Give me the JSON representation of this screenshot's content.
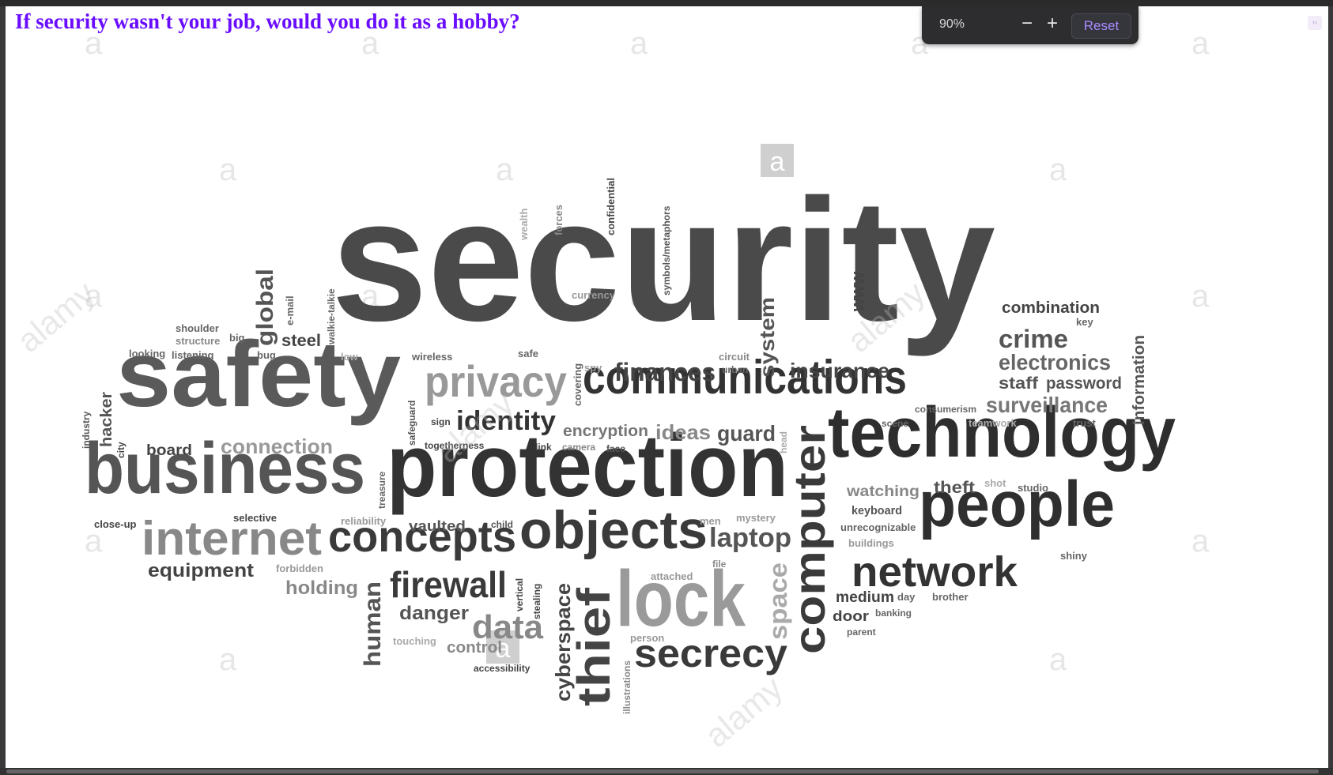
{
  "heading": "If security wasn't your job, would you do it as a hobby?",
  "zoom": {
    "level": "90%",
    "minus": "−",
    "plus": "+",
    "reset": "Reset"
  },
  "corner_icon": "›‹",
  "wordcloud": {
    "security": "security",
    "safety": "safety",
    "protection": "protection",
    "technology": "technology",
    "business": "business",
    "communications": "communications",
    "people": "people",
    "objects": "objects",
    "concepts": "concepts",
    "internet": "internet",
    "lock": "lock",
    "network": "network",
    "computer": "computer",
    "privacy": "privacy",
    "firewall": "firewall",
    "secrecy": "secrecy",
    "thief": "thief",
    "data": "data",
    "identity": "identity",
    "finances": "finances",
    "insurance": "insurance",
    "crime": "crime",
    "electronics": "electronics",
    "surveillance": "surveillance",
    "laptop": "laptop",
    "space": "space",
    "cyberspace": "cyberspace",
    "human": "human",
    "global": "global",
    "system": "system",
    "www": "www",
    "combination": "combination",
    "password": "password",
    "staff": "staff",
    "information": "information",
    "guard": "guard",
    "ideas": "ideas",
    "encryption": "encryption",
    "connection": "connection",
    "equipment": "equipment",
    "holding": "holding",
    "danger": "danger",
    "control": "control",
    "vaulted": "vaulted",
    "steel": "steel",
    "watching": "watching",
    "theft": "theft",
    "keyboard": "keyboard",
    "medium": "medium",
    "door": "door",
    "hacker": "hacker",
    "board": "board",
    "shoulder": "shoulder",
    "structure": "structure",
    "big": "big",
    "looking": "looking",
    "listening": "listening",
    "bug": "bug",
    "e_mail": "e-mail",
    "walkie_talkie": "walkie-talkie",
    "low": "low",
    "wireless": "wireless",
    "safe": "safe",
    "currency": "currency",
    "circuit": "circuit",
    "urban": "urban",
    "spy": "spy",
    "covering": "covering",
    "wealth": "wealth",
    "forces": "forces",
    "confidential": "confidential",
    "symbols_metaphors": "symbols/metaphors",
    "key": "key",
    "consumerism": "consumerism",
    "trust": "trust",
    "teamwork": "teamwork",
    "scene": "scene",
    "studio": "studio",
    "shot": "shot",
    "unrecognizable": "unrecognizable",
    "buildings": "buildings",
    "shiny": "shiny",
    "day": "day",
    "brother": "brother",
    "banking": "banking",
    "parent": "parent",
    "mystery": "mystery",
    "men": "men",
    "file": "file",
    "attached": "attached",
    "person": "person",
    "illustrations": "illustrations",
    "accessibility": "accessibility",
    "touching": "touching",
    "vertical": "vertical",
    "stealing": "stealing",
    "child": "child",
    "reliability": "reliability",
    "selective": "selective",
    "close_up": "close-up",
    "forbidden": "forbidden",
    "treasure": "treasure",
    "togetherness": "togetherness",
    "sign": "sign",
    "safeguard": "safeguard",
    "link": "link",
    "camera": "camera",
    "face": "face",
    "head": "head",
    "industry": "industry",
    "city": "city"
  }
}
